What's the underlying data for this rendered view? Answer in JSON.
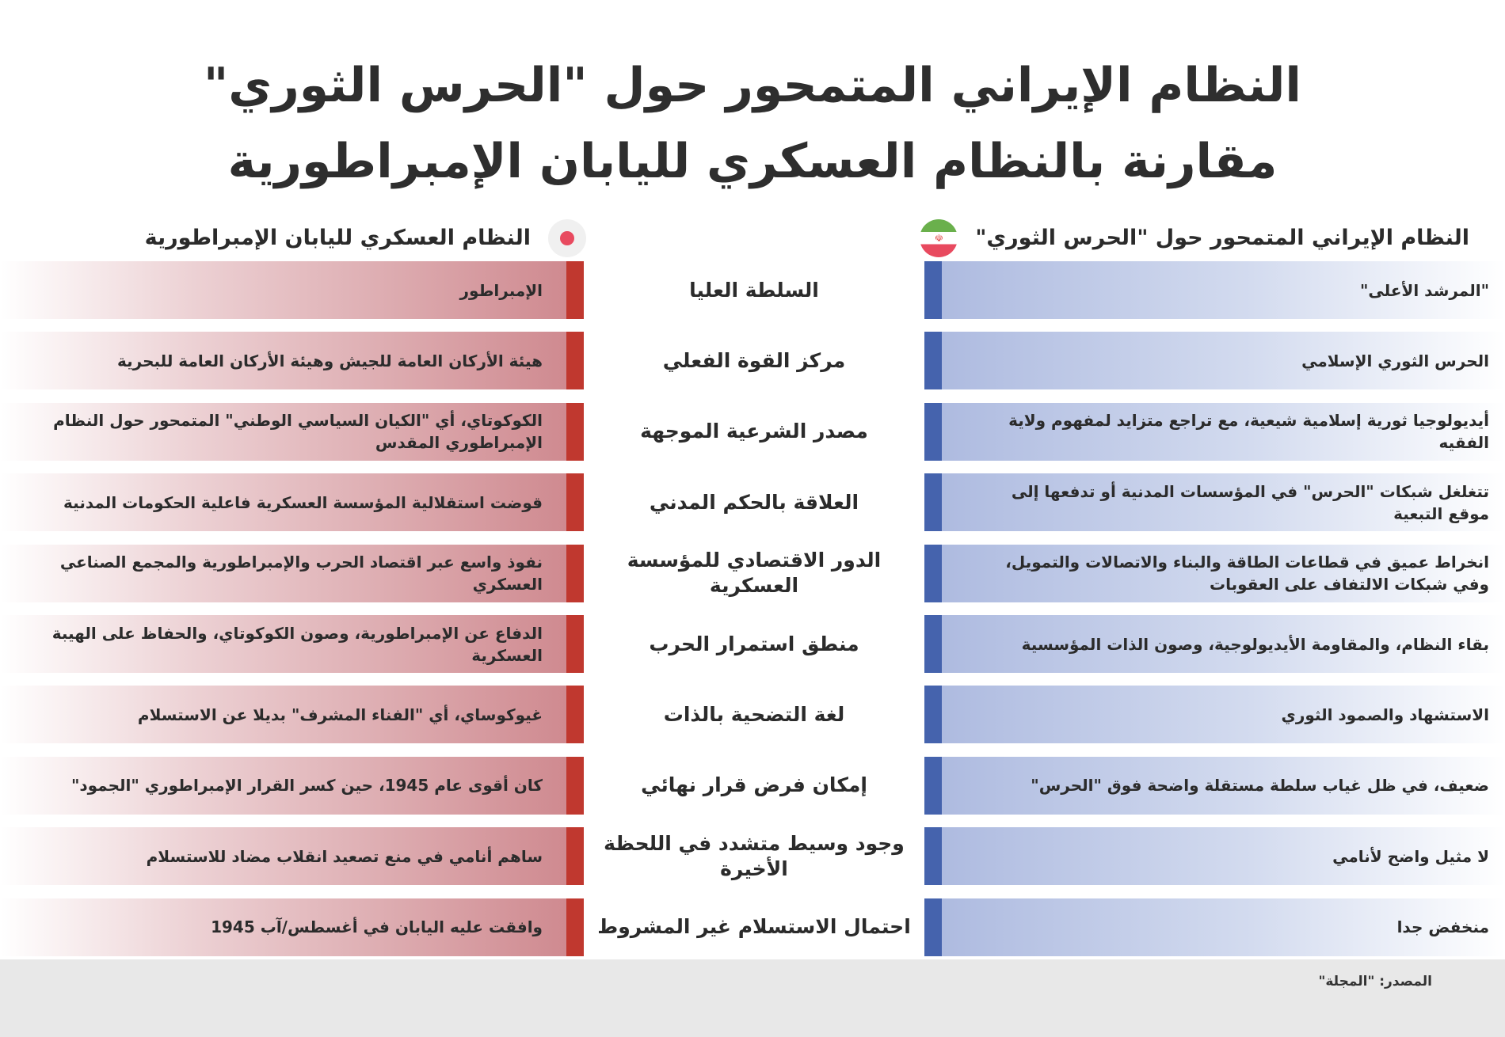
{
  "title": {
    "line1": "النظام الإيراني المتمحور حول \"الحرس الثوري\"",
    "line2": "مقارنة بالنظام العسكري لليابان الإمبراطورية"
  },
  "columns": {
    "iran": {
      "label": "النظام الإيراني المتمحور حول \"الحرس الثوري\"",
      "icon": "iran-flag-icon",
      "color": "#4563ad"
    },
    "japan": {
      "label": "النظام العسكري لليابان الإمبراطورية",
      "icon": "japan-flag-icon",
      "color": "#c0382f"
    }
  },
  "rows": [
    {
      "criterion": "السلطة العليا",
      "iran": "\"المرشد الأعلى\"",
      "japan": "الإمبراطور"
    },
    {
      "criterion": "مركز القوة الفعلي",
      "iran": "الحرس الثوري الإسلامي",
      "japan": "هيئة الأركان العامة للجيش وهيئة الأركان العامة للبحرية"
    },
    {
      "criterion": "مصدر الشرعية الموجهة",
      "iran": "أيديولوجيا ثورية إسلامية شيعية، مع تراجع متزايد لمفهوم ولاية الفقيه",
      "japan": "الكوكوتاي، أي \"الكيان السياسي الوطني\" المتمحور حول النظام الإمبراطوري المقدس"
    },
    {
      "criterion": "العلاقة بالحكم المدني",
      "iran": "تتغلغل شبكات \"الحرس\" في المؤسسات المدنية أو تدفعها إلى موقع التبعية",
      "japan": "قوضت استقلالية المؤسسة العسكرية فاعلية الحكومات المدنية"
    },
    {
      "criterion": "الدور الاقتصادي للمؤسسة العسكرية",
      "iran": "انخراط عميق في قطاعات الطاقة والبناء والاتصالات والتمويل، وفي شبكات الالتفاف على العقوبات",
      "japan": "نفوذ واسع عبر اقتصاد الحرب والإمبراطورية والمجمع الصناعي العسكري"
    },
    {
      "criterion": "منطق استمرار الحرب",
      "iran": "بقاء النظام، والمقاومة الأيديولوجية، وصون الذات المؤسسية",
      "japan": "الدفاع عن الإمبراطورية، وصون الكوكوتاي، والحفاظ على الهيبة العسكرية"
    },
    {
      "criterion": "لغة التضحية بالذات",
      "iran": "الاستشهاد والصمود الثوري",
      "japan": "غيوكوساي، أي \"الفناء المشرف\" بديلا عن الاستسلام"
    },
    {
      "criterion": "إمكان فرض قرار نهائي",
      "iran": "ضعيف، في ظل غياب سلطة مستقلة واضحة فوق \"الحرس\"",
      "japan": "كان أقوى عام 1945، حين كسر القرار الإمبراطوري \"الجمود\""
    },
    {
      "criterion": "وجود وسيط متشدد في اللحظة الأخيرة",
      "iran": "لا مثيل واضح لأنامي",
      "japan": "ساهم أنامي في منع تصعيد انقلاب مضاد للاستسلام"
    },
    {
      "criterion": "احتمال الاستسلام غير المشروط",
      "iran": "منخفض جدا",
      "japan": "وافقت عليه اليابان في أغسطس/آب 1945"
    }
  ],
  "source": "المصدر: \"المجلة\""
}
